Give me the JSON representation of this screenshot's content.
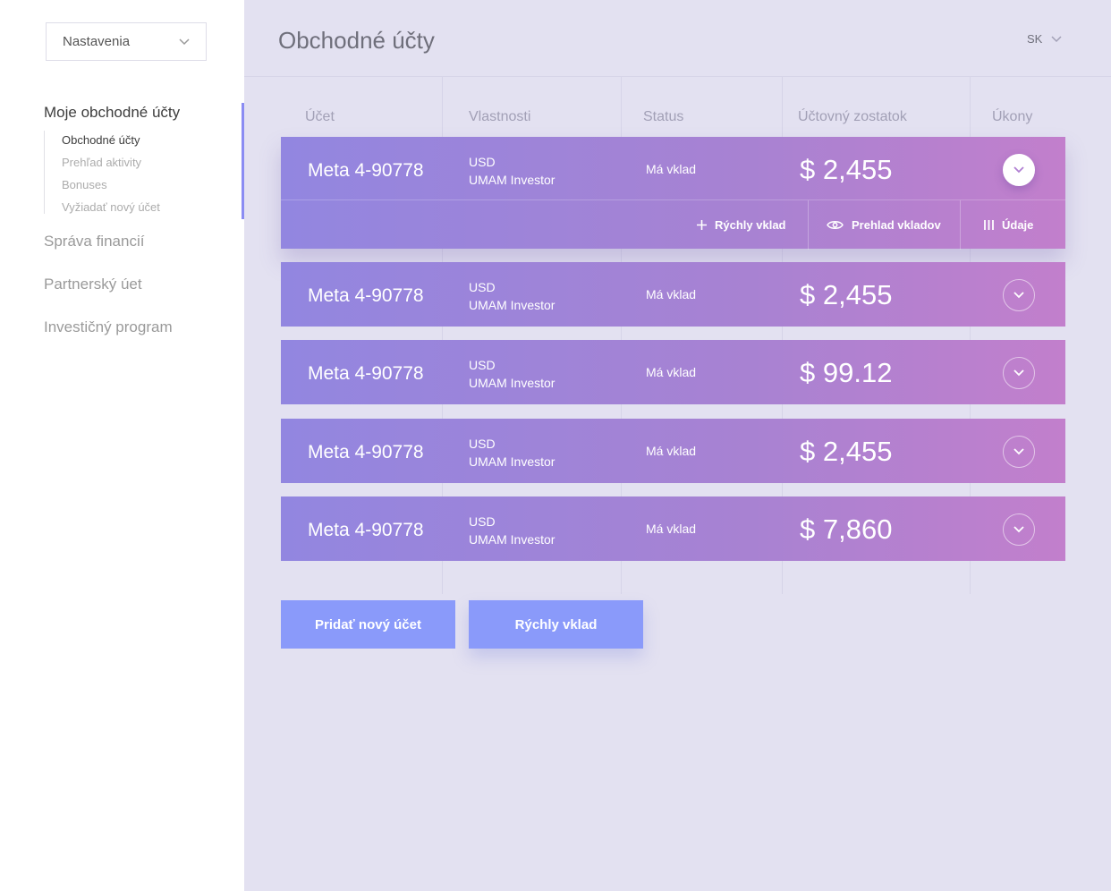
{
  "sidebar": {
    "settings_select": {
      "value": "Nastavenia"
    },
    "sections": [
      {
        "label": "Moje obchodné účty",
        "active": true
      },
      {
        "label": "Správa financií"
      },
      {
        "label": "Partnerský úet"
      },
      {
        "label": "Investičný program"
      }
    ],
    "subitems": [
      {
        "label": "Obchodné účty",
        "active": true
      },
      {
        "label": "Prehľad aktivity"
      },
      {
        "label": "Bonuses"
      },
      {
        "label": "Vyžiadať nový účet"
      }
    ]
  },
  "header": {
    "title": "Obchodné účty",
    "language": "SK"
  },
  "table": {
    "columns": [
      "Účet",
      "Vlastnosti",
      "Status",
      "Účtovný zostatok",
      "Úkony"
    ],
    "rows": [
      {
        "account": "Meta 4-90778",
        "currency": "USD",
        "type": "UMAM Investor",
        "status": "Má vklad",
        "balance": "$ 2,455",
        "expanded": true
      },
      {
        "account": "Meta 4-90778",
        "currency": "USD",
        "type": "UMAM Investor",
        "status": "Má vklad",
        "balance": "$ 2,455"
      },
      {
        "account": "Meta 4-90778",
        "currency": "USD",
        "type": "UMAM Investor",
        "status": "Má vklad",
        "balance": "$ 99.12"
      },
      {
        "account": "Meta 4-90778",
        "currency": "USD",
        "type": "UMAM Investor",
        "status": "Má vklad",
        "balance": "$ 2,455"
      },
      {
        "account": "Meta 4-90778",
        "currency": "USD",
        "type": "UMAM Investor",
        "status": "Má vklad",
        "balance": "$ 7,860"
      }
    ],
    "row_actions": {
      "quick_deposit": "Rýchly vklad",
      "deposit_overview": "Prehlad vkladov",
      "details": "Údaje"
    }
  },
  "buttons": {
    "add_account": "Pridať nový účet",
    "quick_deposit": "Rýchly vklad"
  },
  "colors": {
    "accent": "#8a9afa",
    "row_gradient_start": "#9286e0",
    "row_gradient_end": "#c27fcc",
    "background": "#e3e1f1",
    "sidebar_active_bar": "#8b8cf3"
  },
  "icons": {
    "dropdown": "chevron-down-icon",
    "add": "plus-icon",
    "view": "eye-icon",
    "details": "bars-icon"
  }
}
